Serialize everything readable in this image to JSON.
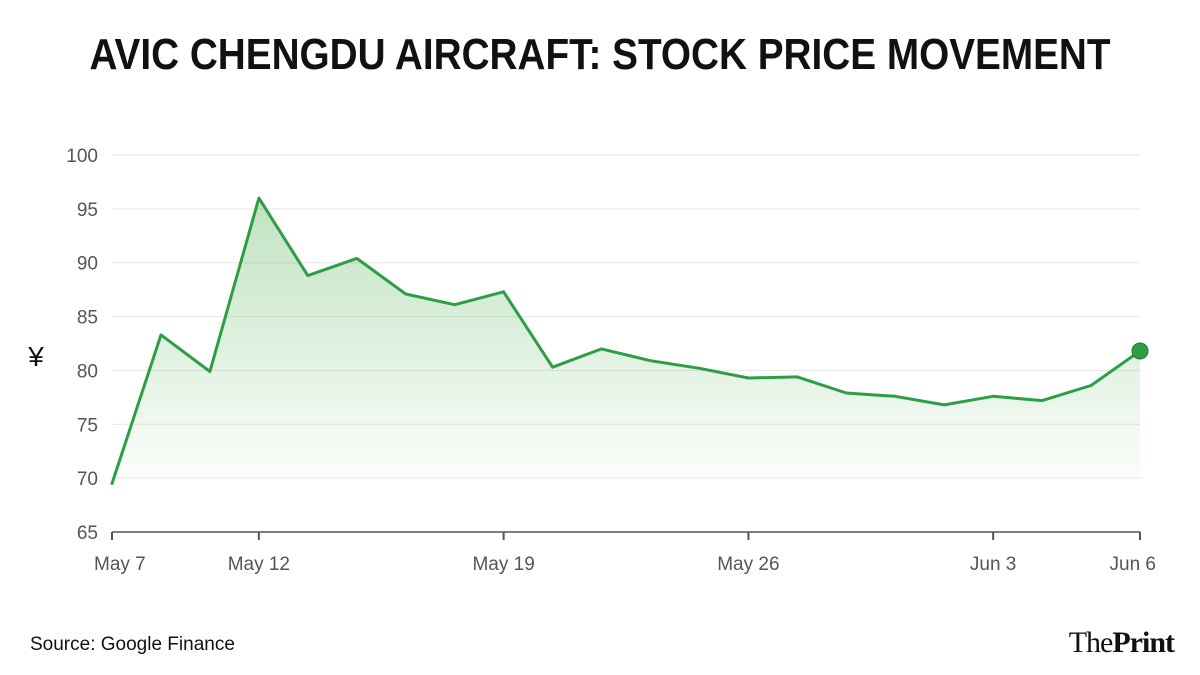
{
  "title": "AVIC CHENGDU AIRCRAFT: STOCK PRICE MOVEMENT",
  "source": "Source: Google Finance",
  "logo": {
    "the": "The",
    "print": "Print"
  },
  "colors": {
    "line": "#2e9e45",
    "fill": "#4caf50",
    "grid": "#e6e6e6",
    "axis": "#555555",
    "text": "#555555"
  },
  "chart_data": {
    "type": "area",
    "ylabel": "¥",
    "ylim": [
      65,
      100
    ],
    "yticks": [
      65,
      70,
      75,
      80,
      85,
      90,
      95,
      100
    ],
    "x": [
      "May 7",
      "May 8",
      "May 9",
      "May 12",
      "May 13",
      "May 14",
      "May 15",
      "May 16",
      "May 19",
      "May 20",
      "May 21",
      "May 22",
      "May 23",
      "May 26",
      "May 27",
      "May 28",
      "May 29",
      "May 30",
      "Jun 3",
      "Jun 4",
      "Jun 5",
      "Jun 6"
    ],
    "xticks": [
      {
        "index": 0,
        "label": "May 7"
      },
      {
        "index": 3,
        "label": "May 12"
      },
      {
        "index": 8,
        "label": "May 19"
      },
      {
        "index": 13,
        "label": "May 26"
      },
      {
        "index": 18,
        "label": "Jun 3"
      },
      {
        "index": 21,
        "label": "Jun 6"
      }
    ],
    "series": [
      {
        "values": [
          69.5,
          83.3,
          79.9,
          96.0,
          88.8,
          90.4,
          87.1,
          86.1,
          87.3,
          80.3,
          82.0,
          80.9,
          80.2,
          79.3,
          79.4,
          77.9,
          77.6,
          76.8,
          77.6,
          77.2,
          78.6,
          81.8
        ]
      }
    ],
    "grid": true,
    "end_marker": true
  }
}
